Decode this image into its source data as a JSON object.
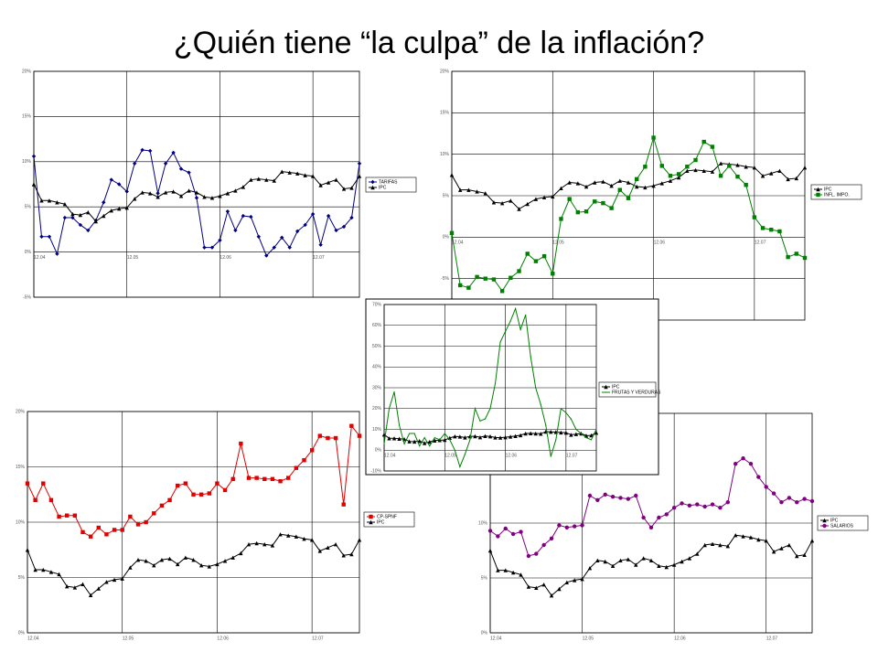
{
  "title": "¿Quién tiene “la culpa” de la inflación?",
  "chart_data": [
    {
      "type": "line",
      "grid": true,
      "categories": [
        "12.04",
        null,
        null,
        null,
        null,
        null,
        null,
        null,
        null,
        null,
        null,
        null,
        "12.05",
        null,
        null,
        null,
        null,
        null,
        null,
        null,
        null,
        null,
        null,
        null,
        "12.06",
        null,
        null,
        null,
        null,
        null,
        null,
        null,
        null,
        null,
        null,
        null,
        "12.07",
        null,
        null,
        null,
        null,
        null,
        null
      ],
      "ylim": [
        -5,
        20
      ],
      "yticks": [
        {
          "value": -5,
          "label": "-5%"
        },
        {
          "value": 0,
          "label": "0%"
        },
        {
          "value": 5,
          "label": "5%"
        },
        {
          "value": 10,
          "label": "10%"
        },
        {
          "value": 15,
          "label": "15%"
        },
        {
          "value": 20,
          "label": "20%"
        }
      ],
      "series": [
        {
          "name": "TARIFAS",
          "color": "#000080",
          "marker": "diamond",
          "values": [
            10.6,
            1.7,
            1.7,
            -0.2,
            3.8,
            3.8,
            3.0,
            2.4,
            3.5,
            5.5,
            8.0,
            7.5,
            6.7,
            9.8,
            11.3,
            11.2,
            6.5,
            9.8,
            11.0,
            9.2,
            8.8,
            6.0,
            0.5,
            0.5,
            1.3,
            4.5,
            2.4,
            4.0,
            3.9,
            1.7,
            -0.4,
            0.5,
            1.6,
            0.5,
            2.3,
            3.0,
            4.2,
            0.8,
            4.0,
            2.4,
            2.8,
            3.8,
            9.8
          ]
        },
        {
          "name": "IPC",
          "color": "#000000",
          "marker": "triangle",
          "values": [
            7.5,
            5.7,
            5.7,
            5.5,
            5.3,
            4.2,
            4.1,
            4.4,
            3.4,
            4.0,
            4.6,
            4.8,
            4.9,
            5.9,
            6.6,
            6.5,
            6.1,
            6.6,
            6.7,
            6.2,
            6.8,
            6.6,
            6.1,
            6.0,
            6.2,
            6.5,
            6.8,
            7.2,
            8.0,
            8.1,
            8.0,
            7.9,
            8.9,
            8.8,
            8.7,
            8.5,
            8.4,
            7.4,
            7.7,
            8.0,
            7.0,
            7.1,
            8.4
          ]
        }
      ]
    },
    {
      "type": "line",
      "grid": true,
      "categories": [
        "12.04",
        null,
        null,
        null,
        null,
        null,
        null,
        null,
        null,
        null,
        null,
        null,
        "12.05",
        null,
        null,
        null,
        null,
        null,
        null,
        null,
        null,
        null,
        null,
        null,
        "12.06",
        null,
        null,
        null,
        null,
        null,
        null,
        null,
        null,
        null,
        null,
        null,
        "12.07",
        null,
        null,
        null,
        null,
        null,
        null
      ],
      "ylim": [
        -10,
        20
      ],
      "yticks": [
        {
          "value": -5,
          "label": "-5%"
        },
        {
          "value": 0,
          "label": "0%"
        },
        {
          "value": 5,
          "label": "5%"
        },
        {
          "value": 10,
          "label": "10%"
        },
        {
          "value": 15,
          "label": "15%"
        },
        {
          "value": 20,
          "label": "20%"
        }
      ],
      "series": [
        {
          "name": "IPC",
          "color": "#000000",
          "marker": "triangle",
          "values": [
            7.5,
            5.7,
            5.7,
            5.5,
            5.3,
            4.2,
            4.1,
            4.4,
            3.4,
            4.0,
            4.6,
            4.8,
            4.9,
            5.9,
            6.6,
            6.5,
            6.1,
            6.6,
            6.7,
            6.2,
            6.8,
            6.6,
            6.1,
            6.0,
            6.2,
            6.5,
            6.8,
            7.2,
            8.0,
            8.1,
            8.0,
            7.9,
            8.9,
            8.8,
            8.7,
            8.5,
            8.4,
            7.4,
            7.7,
            8.0,
            7.0,
            7.1,
            8.4
          ]
        },
        {
          "name": "INFL. IMPO.",
          "color": "#008000",
          "marker": "square",
          "values": [
            0.5,
            -5.8,
            -6.1,
            -4.8,
            -5.0,
            -5.1,
            -6.5,
            -4.9,
            -4.1,
            -2.0,
            -2.9,
            -2.3,
            -4.4,
            2.2,
            4.6,
            3.0,
            3.1,
            4.3,
            4.1,
            3.5,
            5.7,
            4.7,
            7.0,
            8.5,
            12.0,
            8.6,
            7.4,
            7.6,
            8.5,
            9.3,
            11.5,
            10.9,
            7.4,
            8.6,
            7.3,
            6.3,
            2.4,
            1.1,
            0.9,
            0.7,
            -2.4,
            -2.0,
            -2.5
          ]
        }
      ]
    },
    {
      "type": "line",
      "grid": true,
      "categories": [
        "12.04",
        null,
        null,
        null,
        null,
        null,
        null,
        null,
        null,
        null,
        null,
        null,
        "12.05",
        null,
        null,
        null,
        null,
        null,
        null,
        null,
        null,
        null,
        null,
        null,
        "12.06",
        null,
        null,
        null,
        null,
        null,
        null,
        null,
        null,
        null,
        null,
        null,
        "12.07",
        null,
        null,
        null,
        null,
        null,
        null
      ],
      "ylim": [
        -10,
        70
      ],
      "yticks": [
        {
          "value": -10,
          "label": "-10%"
        },
        {
          "value": 0,
          "label": "0%"
        },
        {
          "value": 10,
          "label": "10%"
        },
        {
          "value": 20,
          "label": "20%"
        },
        {
          "value": 30,
          "label": "30%"
        },
        {
          "value": 40,
          "label": "40%"
        },
        {
          "value": 50,
          "label": "50%"
        },
        {
          "value": 60,
          "label": "60%"
        },
        {
          "value": 70,
          "label": "70%"
        }
      ],
      "series": [
        {
          "name": "IPC",
          "color": "#000000",
          "marker": "triangle",
          "values": [
            7.5,
            5.7,
            5.7,
            5.5,
            5.3,
            4.2,
            4.1,
            4.4,
            3.4,
            4.0,
            4.6,
            4.8,
            4.9,
            5.9,
            6.6,
            6.5,
            6.1,
            6.6,
            6.7,
            6.2,
            6.8,
            6.6,
            6.1,
            6.0,
            6.2,
            6.5,
            6.8,
            7.2,
            8.0,
            8.1,
            8.0,
            7.9,
            8.9,
            8.8,
            8.7,
            8.5,
            8.4,
            7.4,
            7.7,
            8.0,
            7.0,
            7.1,
            8.4
          ]
        },
        {
          "name": "FRUTAS Y VERDURAS",
          "color": "#008000",
          "marker": "none",
          "values": [
            3,
            20,
            28,
            12,
            3,
            8,
            8,
            2,
            6,
            2,
            6,
            5,
            8,
            5,
            0,
            -8,
            -2,
            5,
            20,
            14,
            15,
            20,
            32,
            52,
            57,
            62,
            68,
            58,
            65,
            45,
            30,
            22,
            12,
            -3,
            5,
            20,
            18,
            15,
            10,
            8,
            6,
            5,
            10
          ]
        }
      ]
    },
    {
      "type": "line",
      "grid": true,
      "categories": [
        "12.04",
        null,
        null,
        null,
        null,
        null,
        null,
        null,
        null,
        null,
        null,
        null,
        "12.05",
        null,
        null,
        null,
        null,
        null,
        null,
        null,
        null,
        null,
        null,
        null,
        "12.06",
        null,
        null,
        null,
        null,
        null,
        null,
        null,
        null,
        null,
        null,
        null,
        "12.07",
        null,
        null,
        null,
        null,
        null,
        null
      ],
      "ylim": [
        0,
        20
      ],
      "yticks": [
        {
          "value": 0,
          "label": "0%"
        },
        {
          "value": 5,
          "label": "5%"
        },
        {
          "value": 10,
          "label": "10%"
        },
        {
          "value": 15,
          "label": "15%"
        },
        {
          "value": 20,
          "label": "20%"
        }
      ],
      "series": [
        {
          "name": "CP-SPNF",
          "color": "#e00000",
          "marker": "square",
          "values": [
            13.5,
            12.0,
            13.5,
            12.0,
            10.5,
            10.6,
            10.6,
            9.1,
            8.7,
            9.5,
            8.9,
            9.3,
            9.3,
            10.5,
            9.8,
            10.0,
            10.8,
            11.5,
            12.0,
            13.3,
            13.5,
            12.5,
            12.5,
            12.6,
            13.5,
            12.9,
            13.9,
            17.1,
            14.0,
            14.0,
            13.9,
            13.9,
            13.7,
            14.0,
            14.9,
            15.6,
            16.5,
            17.8,
            17.6,
            17.6,
            11.6,
            18.7,
            17.8
          ]
        },
        {
          "name": "IPC",
          "color": "#000000",
          "marker": "triangle",
          "values": [
            7.5,
            5.7,
            5.7,
            5.5,
            5.3,
            4.2,
            4.1,
            4.4,
            3.4,
            4.0,
            4.6,
            4.8,
            4.9,
            5.9,
            6.6,
            6.5,
            6.1,
            6.6,
            6.7,
            6.2,
            6.8,
            6.6,
            6.1,
            6.0,
            6.2,
            6.5,
            6.8,
            7.2,
            8.0,
            8.1,
            8.0,
            7.9,
            8.9,
            8.8,
            8.7,
            8.5,
            8.4,
            7.4,
            7.7,
            8.0,
            7.0,
            7.1,
            8.4
          ]
        }
      ]
    },
    {
      "type": "line",
      "grid": true,
      "categories": [
        "12.04",
        null,
        null,
        null,
        null,
        null,
        null,
        null,
        null,
        null,
        null,
        null,
        "12.05",
        null,
        null,
        null,
        null,
        null,
        null,
        null,
        null,
        null,
        null,
        null,
        "12.06",
        null,
        null,
        null,
        null,
        null,
        null,
        null,
        null,
        null,
        null,
        null,
        "12.07",
        null,
        null,
        null,
        null,
        null,
        null
      ],
      "ylim": [
        0,
        20
      ],
      "yticks": [
        {
          "value": 0,
          "label": "0%"
        },
        {
          "value": 5,
          "label": "5%"
        },
        {
          "value": 10,
          "label": "10%"
        }
      ],
      "series": [
        {
          "name": "IPC",
          "color": "#000000",
          "marker": "triangle",
          "values": [
            7.5,
            5.7,
            5.7,
            5.5,
            5.3,
            4.2,
            4.1,
            4.4,
            3.4,
            4.0,
            4.6,
            4.8,
            4.9,
            5.9,
            6.6,
            6.5,
            6.1,
            6.6,
            6.7,
            6.2,
            6.8,
            6.6,
            6.1,
            6.0,
            6.2,
            6.5,
            6.8,
            7.2,
            8.0,
            8.1,
            8.0,
            7.9,
            8.9,
            8.8,
            8.7,
            8.5,
            8.4,
            7.4,
            7.7,
            8.0,
            7.0,
            7.1,
            8.4
          ]
        },
        {
          "name": "SALARIOS",
          "color": "#800080",
          "marker": "circle",
          "values": [
            9.3,
            8.8,
            9.5,
            9.0,
            9.2,
            7.0,
            7.2,
            8.0,
            8.6,
            9.8,
            9.6,
            9.7,
            9.8,
            12.5,
            12.1,
            12.6,
            12.4,
            12.3,
            12.2,
            12.5,
            10.5,
            9.6,
            10.5,
            10.8,
            11.4,
            11.8,
            11.6,
            11.7,
            11.5,
            11.7,
            11.4,
            11.9,
            15.4,
            15.9,
            15.4,
            14.2,
            13.3,
            12.7,
            11.9,
            12.3,
            11.9,
            12.2,
            12.0
          ]
        }
      ]
    }
  ]
}
